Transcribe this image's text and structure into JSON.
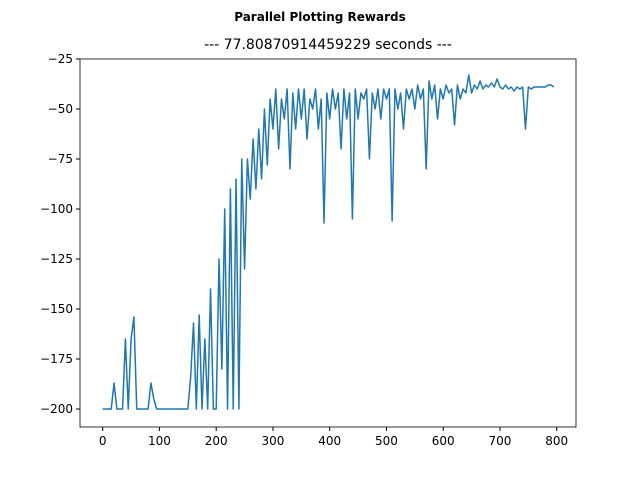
{
  "chart_data": {
    "type": "line",
    "suptitle": "Parallel Plotting Rewards",
    "title": "--- 77.80870914459229 seconds ---",
    "color": "#1f77b4",
    "x": [
      0,
      5,
      10,
      15,
      20,
      25,
      30,
      35,
      40,
      45,
      50,
      55,
      60,
      65,
      70,
      75,
      80,
      85,
      90,
      95,
      100,
      105,
      110,
      115,
      120,
      125,
      130,
      135,
      140,
      145,
      150,
      155,
      160,
      165,
      170,
      175,
      180,
      185,
      190,
      195,
      200,
      205,
      210,
      215,
      220,
      225,
      230,
      235,
      240,
      245,
      250,
      255,
      260,
      265,
      270,
      275,
      280,
      285,
      290,
      295,
      300,
      305,
      310,
      315,
      320,
      325,
      330,
      335,
      340,
      345,
      350,
      355,
      360,
      365,
      370,
      375,
      380,
      385,
      390,
      395,
      400,
      405,
      410,
      415,
      420,
      425,
      430,
      435,
      440,
      445,
      450,
      455,
      460,
      465,
      470,
      475,
      480,
      485,
      490,
      495,
      500,
      505,
      510,
      515,
      520,
      525,
      530,
      535,
      540,
      545,
      550,
      555,
      560,
      565,
      570,
      575,
      580,
      585,
      590,
      595,
      600,
      605,
      610,
      615,
      620,
      625,
      630,
      635,
      640,
      645,
      650,
      655,
      660,
      665,
      670,
      675,
      680,
      685,
      690,
      695,
      700,
      705,
      710,
      715,
      720,
      725,
      730,
      735,
      740,
      745,
      750,
      755,
      760,
      765,
      770,
      775,
      780,
      785,
      790,
      795
    ],
    "values": [
      -200,
      -200,
      -200,
      -200,
      -187,
      -200,
      -200,
      -200,
      -165,
      -200,
      -165,
      -154,
      -200,
      -200,
      -200,
      -200,
      -200,
      -187,
      -195,
      -200,
      -200,
      -200,
      -200,
      -200,
      -200,
      -200,
      -200,
      -200,
      -200,
      -200,
      -200,
      -184,
      -157,
      -200,
      -153,
      -200,
      -165,
      -200,
      -140,
      -200,
      -200,
      -125,
      -180,
      -100,
      -200,
      -90,
      -200,
      -85,
      -200,
      -75,
      -130,
      -75,
      -95,
      -65,
      -90,
      -60,
      -85,
      -50,
      -78,
      -45,
      -60,
      -40,
      -70,
      -45,
      -55,
      -40,
      -80,
      -42,
      -60,
      -40,
      -55,
      -40,
      -65,
      -45,
      -50,
      -40,
      -60,
      -45,
      -107,
      -42,
      -55,
      -40,
      -50,
      -42,
      -70,
      -40,
      -55,
      -42,
      -105,
      -40,
      -55,
      -42,
      -45,
      -40,
      -75,
      -42,
      -50,
      -40,
      -55,
      -40,
      -45,
      -40,
      -106,
      -40,
      -50,
      -42,
      -60,
      -40,
      -45,
      -40,
      -50,
      -38,
      -45,
      -40,
      -80,
      -36,
      -45,
      -38,
      -55,
      -40,
      -45,
      -38,
      -42,
      -40,
      -58,
      -38,
      -45,
      -40,
      -42,
      -33,
      -42,
      -38,
      -40,
      -36,
      -40,
      -38,
      -39,
      -37,
      -39,
      -35,
      -39,
      -40,
      -38,
      -40,
      -39,
      -41,
      -39,
      -40,
      -39,
      -60,
      -39,
      -40,
      -39,
      -39,
      -39,
      -39,
      -39,
      -38,
      -38,
      -39
    ],
    "xlim": [
      -40,
      834
    ],
    "ylim": [
      -209,
      -25
    ],
    "xticks": [
      0,
      100,
      200,
      300,
      400,
      500,
      600,
      700,
      800
    ],
    "yticks": [
      {
        "value": -200,
        "label": "−200"
      },
      {
        "value": -175,
        "label": "−175"
      },
      {
        "value": -150,
        "label": "−150"
      },
      {
        "value": -125,
        "label": "−125"
      },
      {
        "value": -100,
        "label": "−100"
      },
      {
        "value": -75,
        "label": "−75"
      },
      {
        "value": -50,
        "label": "−50"
      },
      {
        "value": -25,
        "label": "−25"
      }
    ]
  }
}
